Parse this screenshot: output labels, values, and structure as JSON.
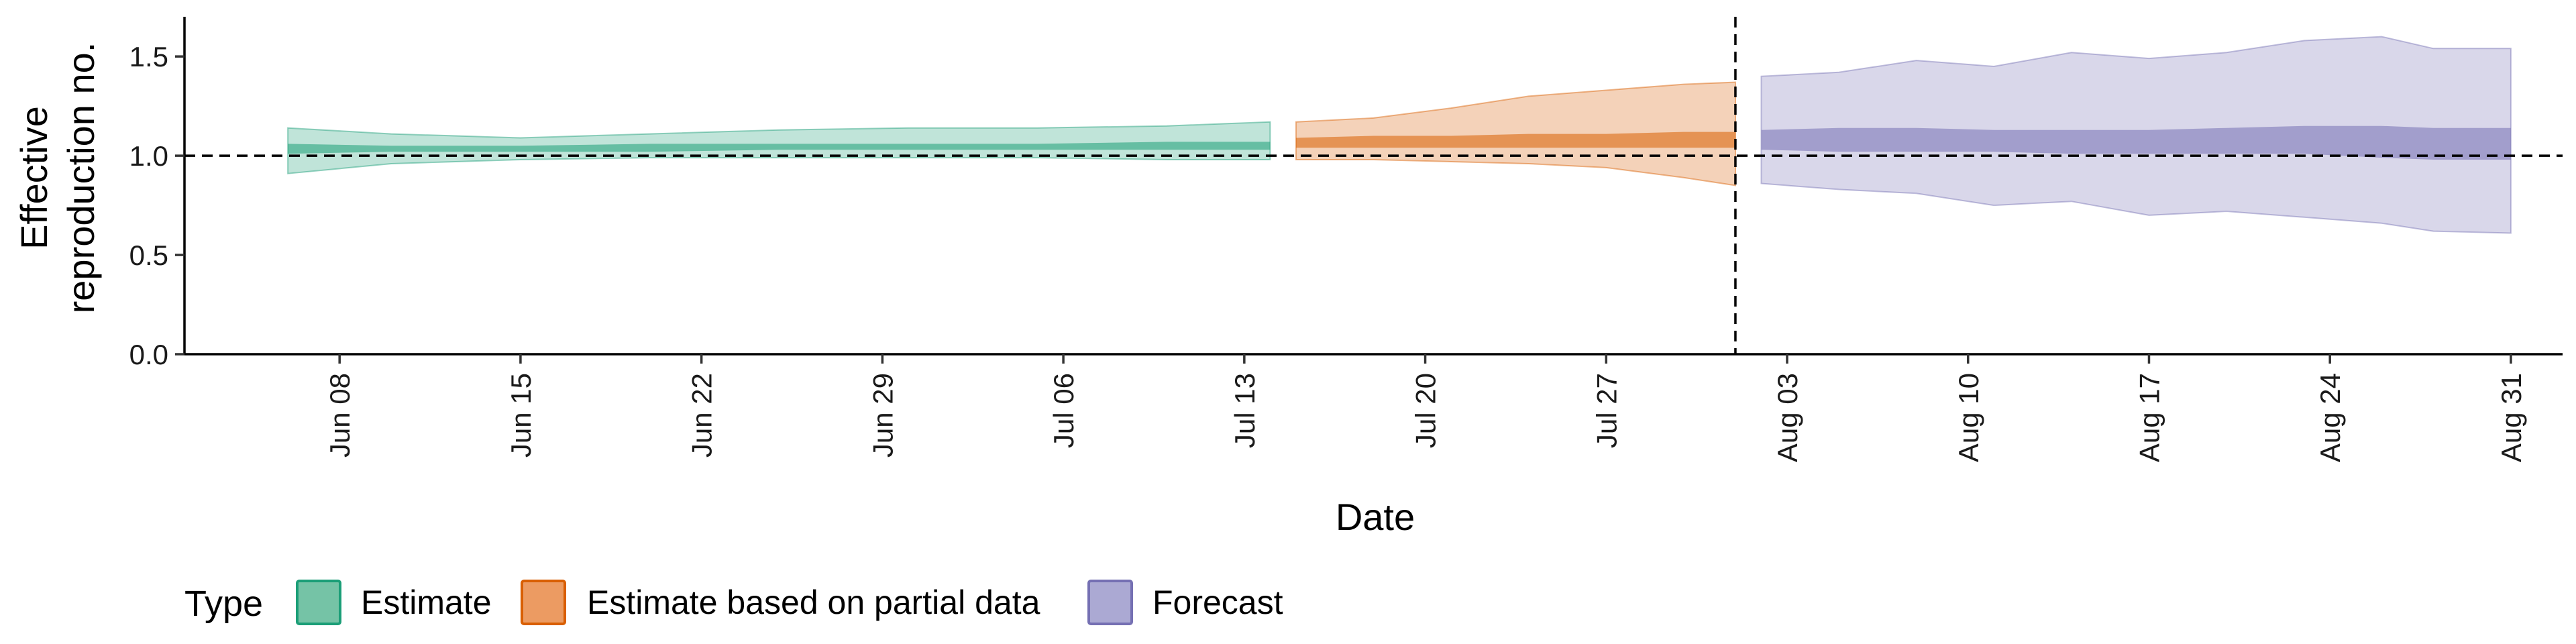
{
  "chart_data": {
    "type": "area",
    "xlabel": "Date",
    "ylabel_lines": [
      "Effective",
      "reproduction no."
    ],
    "ylim": [
      0,
      1.7
    ],
    "xlim": [
      "2020-06-02",
      "2020-09-02"
    ],
    "yticks": [
      0.0,
      0.5,
      1.0,
      1.5
    ],
    "ytick_labels": [
      "0.0",
      "0.5",
      "1.0",
      "1.5"
    ],
    "xticks": [
      "2020-06-08",
      "2020-06-15",
      "2020-06-22",
      "2020-06-29",
      "2020-07-06",
      "2020-07-13",
      "2020-07-20",
      "2020-07-27",
      "2020-08-03",
      "2020-08-10",
      "2020-08-17",
      "2020-08-24",
      "2020-08-31"
    ],
    "xtick_labels": [
      "Jun 08",
      "Jun 15",
      "Jun 22",
      "Jun 29",
      "Jul 06",
      "Jul 13",
      "Jul 20",
      "Jul 27",
      "Aug 03",
      "Aug 10",
      "Aug 17",
      "Aug 24",
      "Aug 31"
    ],
    "reference_hline": 1.0,
    "reference_vline": "2020-08-01",
    "grid": false,
    "legend": {
      "title": "Type",
      "position": "bottom",
      "items": [
        {
          "label": "Estimate",
          "fill": "#75c3a6",
          "stroke": "#1b9e77"
        },
        {
          "label": "Estimate based on partial data",
          "fill": "#ec9b62",
          "stroke": "#d95f02"
        },
        {
          "label": "Forecast",
          "fill": "#aba9d3",
          "stroke": "#7570b3"
        }
      ]
    },
    "series": [
      {
        "name": "Estimate",
        "color": "#1b9e77",
        "points": [
          {
            "date": "2020-06-06",
            "lo90": 0.91,
            "hi90": 1.14,
            "lo50": 1.01,
            "hi50": 1.06
          },
          {
            "date": "2020-06-10",
            "lo90": 0.96,
            "hi90": 1.11,
            "lo50": 1.02,
            "hi50": 1.05
          },
          {
            "date": "2020-06-15",
            "lo90": 0.98,
            "hi90": 1.09,
            "lo50": 1.02,
            "hi50": 1.05
          },
          {
            "date": "2020-06-20",
            "lo90": 0.99,
            "hi90": 1.11,
            "lo50": 1.02,
            "hi50": 1.06
          },
          {
            "date": "2020-06-25",
            "lo90": 0.99,
            "hi90": 1.13,
            "lo50": 1.03,
            "hi50": 1.06
          },
          {
            "date": "2020-06-30",
            "lo90": 0.99,
            "hi90": 1.14,
            "lo50": 1.03,
            "hi50": 1.06
          },
          {
            "date": "2020-07-05",
            "lo90": 0.99,
            "hi90": 1.14,
            "lo50": 1.03,
            "hi50": 1.06
          },
          {
            "date": "2020-07-10",
            "lo90": 0.98,
            "hi90": 1.15,
            "lo50": 1.03,
            "hi50": 1.07
          },
          {
            "date": "2020-07-14",
            "lo90": 0.98,
            "hi90": 1.17,
            "lo50": 1.03,
            "hi50": 1.07
          }
        ]
      },
      {
        "name": "Estimate based on partial data",
        "color": "#d95f02",
        "points": [
          {
            "date": "2020-07-15",
            "lo90": 0.98,
            "hi90": 1.17,
            "lo50": 1.04,
            "hi50": 1.09
          },
          {
            "date": "2020-07-18",
            "lo90": 0.98,
            "hi90": 1.19,
            "lo50": 1.04,
            "hi50": 1.1
          },
          {
            "date": "2020-07-21",
            "lo90": 0.97,
            "hi90": 1.24,
            "lo50": 1.04,
            "hi50": 1.1
          },
          {
            "date": "2020-07-24",
            "lo90": 0.96,
            "hi90": 1.3,
            "lo50": 1.04,
            "hi50": 1.11
          },
          {
            "date": "2020-07-27",
            "lo90": 0.94,
            "hi90": 1.33,
            "lo50": 1.04,
            "hi50": 1.11
          },
          {
            "date": "2020-07-30",
            "lo90": 0.89,
            "hi90": 1.36,
            "lo50": 1.04,
            "hi50": 1.12
          },
          {
            "date": "2020-08-01",
            "lo90": 0.85,
            "hi90": 1.37,
            "lo50": 1.04,
            "hi50": 1.12
          }
        ]
      },
      {
        "name": "Forecast",
        "color": "#7570b3",
        "points": [
          {
            "date": "2020-08-02",
            "lo90": 0.86,
            "hi90": 1.4,
            "lo50": 1.03,
            "hi50": 1.13
          },
          {
            "date": "2020-08-05",
            "lo90": 0.83,
            "hi90": 1.42,
            "lo50": 1.02,
            "hi50": 1.14
          },
          {
            "date": "2020-08-08",
            "lo90": 0.81,
            "hi90": 1.48,
            "lo50": 1.02,
            "hi50": 1.14
          },
          {
            "date": "2020-08-11",
            "lo90": 0.75,
            "hi90": 1.45,
            "lo50": 1.02,
            "hi50": 1.13
          },
          {
            "date": "2020-08-14",
            "lo90": 0.77,
            "hi90": 1.52,
            "lo50": 1.01,
            "hi50": 1.13
          },
          {
            "date": "2020-08-17",
            "lo90": 0.7,
            "hi90": 1.49,
            "lo50": 1.01,
            "hi50": 1.13
          },
          {
            "date": "2020-08-20",
            "lo90": 0.72,
            "hi90": 1.52,
            "lo50": 1.01,
            "hi50": 1.14
          },
          {
            "date": "2020-08-23",
            "lo90": 0.69,
            "hi90": 1.58,
            "lo50": 1.01,
            "hi50": 1.15
          },
          {
            "date": "2020-08-26",
            "lo90": 0.66,
            "hi90": 1.6,
            "lo50": 0.99,
            "hi50": 1.15
          },
          {
            "date": "2020-08-28",
            "lo90": 0.62,
            "hi90": 1.54,
            "lo50": 0.98,
            "hi50": 1.14
          },
          {
            "date": "2020-08-31",
            "lo90": 0.61,
            "hi90": 1.54,
            "lo50": 0.98,
            "hi50": 1.14
          }
        ]
      }
    ]
  }
}
